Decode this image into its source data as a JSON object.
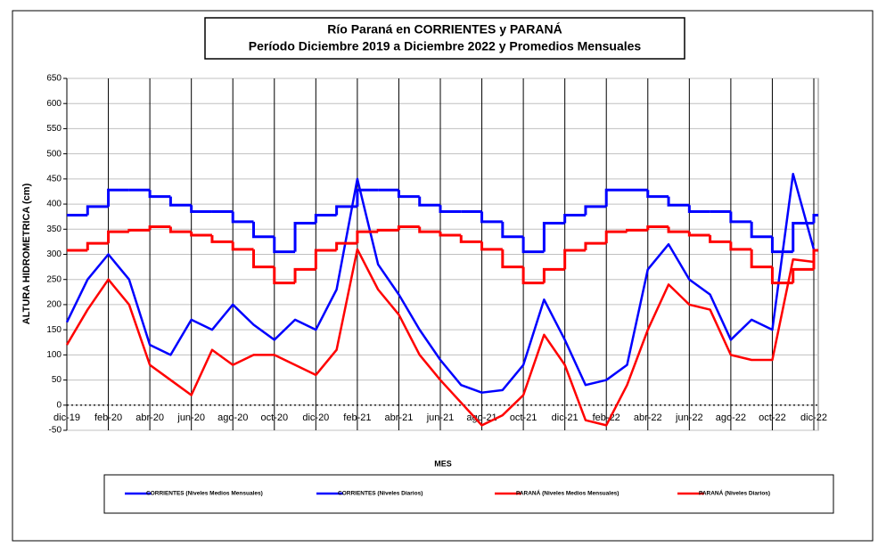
{
  "chart_data": {
    "type": "line",
    "title": "Río Paraná en CORRIENTES y PARANÁ",
    "subtitle": "Período Diciembre 2019 a Diciembre 2022 y Promedios Mensuales",
    "y_label": "ALTURA HIDROMETRICA (cm)",
    "x_label": "MES",
    "categories": [
      "dic-19",
      null,
      "feb-20",
      null,
      "abr-20",
      null,
      "jun-20",
      null,
      "ago-20",
      null,
      "oct-20",
      null,
      "dic-20",
      null,
      "feb-21",
      null,
      "abr-21",
      null,
      "jun-21",
      null,
      "ago-21",
      null,
      "oct-21",
      null,
      "dic-21",
      null,
      "feb-22",
      null,
      "abr-22",
      null,
      "jun-22",
      null,
      "ago-22",
      null,
      "oct-22",
      null,
      "dic-22"
    ],
    "ylim": [
      -50,
      650
    ],
    "yticks": [
      -50,
      0,
      50,
      100,
      150,
      200,
      250,
      300,
      350,
      400,
      450,
      500,
      550,
      600,
      650
    ],
    "grid": true,
    "legend": "bottom",
    "series": [
      {
        "name": "CORRIENTES (Niveles Medios Mensuales)",
        "color": "#0000ff",
        "step": true,
        "values": [
          378,
          395,
          428,
          428,
          415,
          398,
          385,
          385,
          365,
          335,
          305,
          362,
          378,
          395,
          428,
          428,
          415,
          398,
          385,
          385,
          365,
          335,
          305,
          362,
          378,
          395,
          428,
          428,
          415,
          398,
          385,
          385,
          365,
          335,
          305,
          362,
          378
        ]
      },
      {
        "name": "CORRIENTES (Niveles Diarios)",
        "color": "#0000ff",
        "step": false,
        "values": [
          165,
          250,
          300,
          250,
          120,
          100,
          170,
          150,
          200,
          160,
          130,
          170,
          150,
          230,
          450,
          280,
          220,
          150,
          90,
          40,
          25,
          30,
          80,
          210,
          130,
          40,
          50,
          80,
          270,
          320,
          250,
          220,
          130,
          170,
          150,
          460,
          310
        ]
      },
      {
        "name": "PARANÁ (Niveles Medios Mensuales)",
        "color": "#ff0000",
        "step": true,
        "values": [
          308,
          322,
          345,
          348,
          355,
          345,
          338,
          325,
          310,
          275,
          243,
          270,
          308,
          322,
          345,
          348,
          355,
          345,
          338,
          325,
          310,
          275,
          243,
          270,
          308,
          322,
          345,
          348,
          355,
          345,
          338,
          325,
          310,
          275,
          243,
          270,
          308
        ]
      },
      {
        "name": "PARANÁ (Niveles Diarios)",
        "color": "#ff0000",
        "step": false,
        "values": [
          120,
          190,
          250,
          200,
          80,
          50,
          20,
          110,
          80,
          100,
          100,
          80,
          60,
          110,
          310,
          230,
          180,
          100,
          50,
          5,
          -40,
          -20,
          20,
          140,
          80,
          -30,
          -40,
          40,
          150,
          240,
          200,
          190,
          100,
          90,
          90,
          290,
          285
        ]
      }
    ]
  }
}
